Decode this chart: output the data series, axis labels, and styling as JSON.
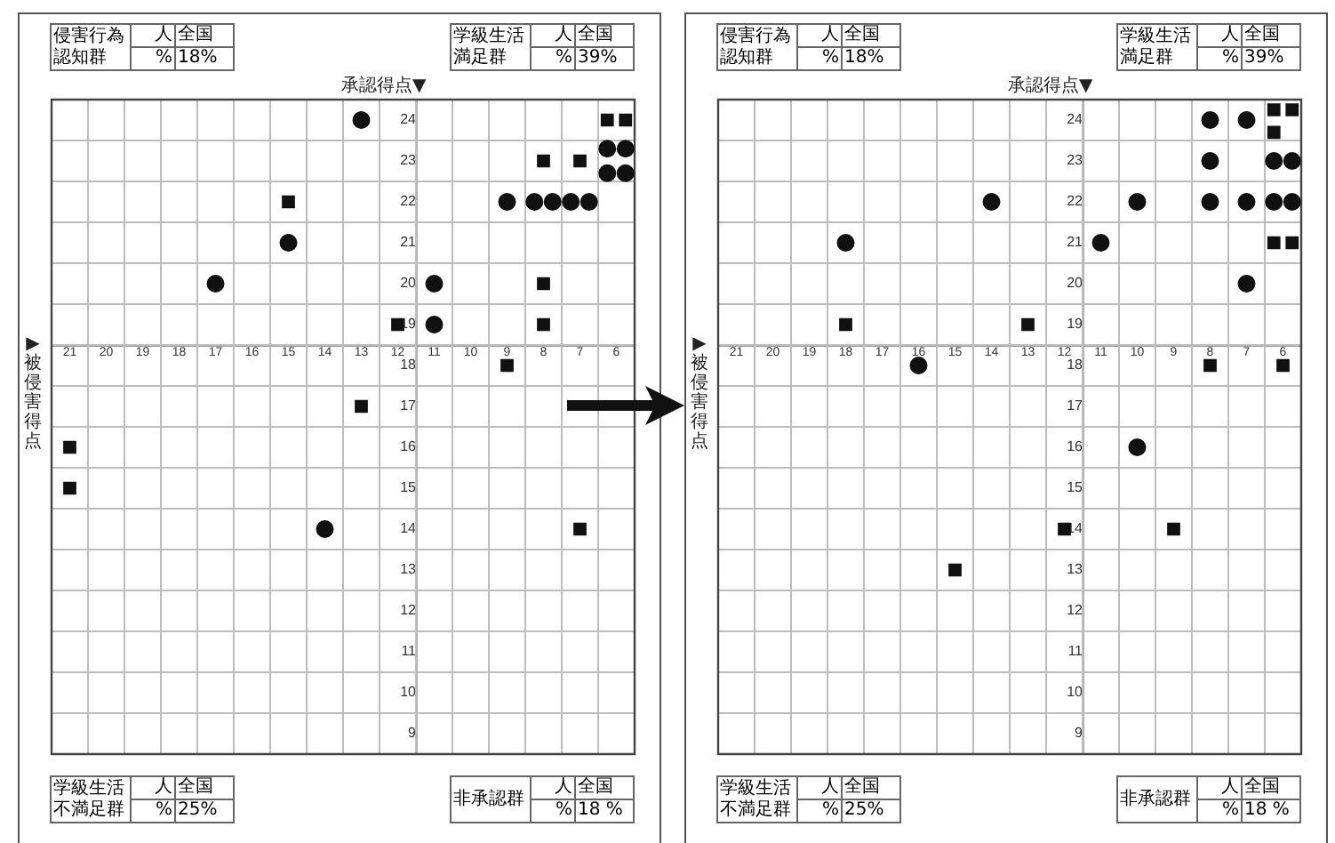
{
  "chart_data": [
    {
      "type": "scatter",
      "xlabel": "▶被侵害得点",
      "ylabel": "承認得点▼",
      "xlim": [
        21.5,
        5.5
      ],
      "ylim": [
        8.5,
        24.5
      ],
      "xticks": [
        21,
        20,
        19,
        18,
        17,
        16,
        15,
        14,
        13,
        12,
        11,
        10,
        9,
        8,
        7,
        6
      ],
      "yticks": [
        9,
        10,
        11,
        12,
        13,
        14,
        15,
        16,
        17,
        18,
        19,
        20,
        21,
        22,
        23,
        24
      ],
      "grid": true,
      "ref_lines": [
        {
          "axis": "x",
          "value": 11.5
        },
        {
          "axis": "y",
          "value": 18.5
        }
      ],
      "series": [
        {
          "marker": "circle",
          "color": "#111111",
          "x": [
            13,
            6.25,
            5.75,
            6.25,
            5.75,
            9,
            8.25,
            7.75,
            7.25,
            6.75,
            15,
            17,
            11,
            11,
            14
          ],
          "values": [
            24,
            23.3,
            23.3,
            22.7,
            22.7,
            22,
            22,
            22,
            22,
            22,
            21,
            20,
            20,
            19,
            14
          ]
        },
        {
          "marker": "square",
          "color": "#111111",
          "x": [
            6.25,
            5.75,
            8,
            7,
            15,
            8,
            12,
            8,
            9,
            13,
            21,
            21,
            7
          ],
          "values": [
            24,
            24,
            23,
            23,
            22,
            20,
            19,
            19,
            18,
            17,
            16,
            15,
            14
          ]
        }
      ],
      "annotations": [
        "侵害行為認知群",
        "人",
        "全国",
        "%",
        "18%",
        "学級生活満足群",
        "人",
        "全国",
        "%",
        "39%",
        "学級生活不満足群",
        "人",
        "全国",
        "%",
        "25%",
        "非承認群",
        "人",
        "全国",
        "%",
        "18 %"
      ]
    },
    {
      "type": "scatter",
      "xlabel": "▶被侵害得点",
      "ylabel": "承認得点▼",
      "xlim": [
        21.5,
        5.5
      ],
      "ylim": [
        8.5,
        24.5
      ],
      "xticks": [
        21,
        20,
        19,
        18,
        17,
        16,
        15,
        14,
        13,
        12,
        11,
        10,
        9,
        8,
        7,
        6
      ],
      "yticks": [
        9,
        10,
        11,
        12,
        13,
        14,
        15,
        16,
        17,
        18,
        19,
        20,
        21,
        22,
        23,
        24
      ],
      "grid": true,
      "ref_lines": [
        {
          "axis": "x",
          "value": 11.5
        },
        {
          "axis": "y",
          "value": 18.5
        }
      ],
      "series": [
        {
          "marker": "circle",
          "color": "#111111",
          "x": [
            8,
            7,
            8,
            6.25,
            5.75,
            14,
            10,
            8,
            7,
            6.25,
            5.75,
            18,
            11,
            7,
            16,
            10
          ],
          "values": [
            24,
            24,
            23,
            23,
            23,
            22,
            22,
            22,
            22,
            22,
            22,
            21,
            21,
            20,
            18,
            16
          ]
        },
        {
          "marker": "square",
          "color": "#111111",
          "x": [
            6.25,
            5.75,
            6.25,
            6.25,
            5.75,
            18,
            13,
            8,
            6,
            12,
            9,
            15
          ],
          "values": [
            24.25,
            24.25,
            23.7,
            21,
            21,
            19,
            19,
            18,
            18,
            14,
            14,
            13
          ]
        }
      ],
      "annotations": [
        "侵害行為認知群",
        "人",
        "全国",
        "%",
        "18%",
        "学級生活満足群",
        "人",
        "全国",
        "%",
        "39%",
        "学級生活不満足群",
        "人",
        "全国",
        "%",
        "25%",
        "非承認群",
        "人",
        "全国",
        "%",
        "18 %"
      ]
    }
  ]
}
